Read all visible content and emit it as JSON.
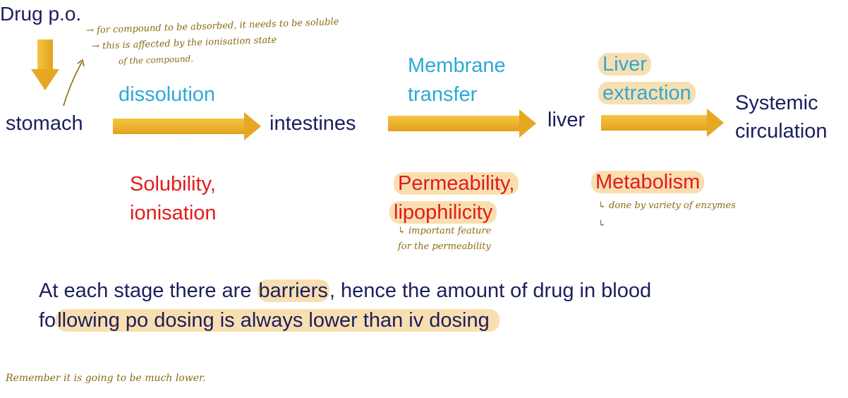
{
  "title": "Drug p.o.",
  "stages": {
    "stomach": "stomach",
    "intestines": "intestines",
    "liver": "liver",
    "systemic_line1": "Systemic",
    "systemic_line2": "circulation"
  },
  "processes": {
    "dissolution": "dissolution",
    "membrane_line1": "Membrane",
    "membrane_line2": "transfer",
    "liver_extraction_line1": "Liver",
    "liver_extraction_line2": "extraction"
  },
  "factors": {
    "solubility_line1": "Solubility,",
    "solubility_line2": "ionisation",
    "permeability_line1": "Permeability,",
    "permeability_line2": "lipophilicity",
    "metabolism": "Metabolism"
  },
  "notes": {
    "absorption_line1": "→ for compound to be absorbed, it needs to be soluble",
    "absorption_line2": "→ this is affected by the ionisation state",
    "absorption_line3": "of the compound.",
    "lipophilicity_line1": "↳ important feature",
    "lipophilicity_line2": "for the permeability",
    "metabolism_note": "↳ done by variety of enzymes",
    "metabolism_note2": "↳",
    "remember": "Remember it is going to be much lower."
  },
  "conclusion": {
    "line1_pre": "At each stage there are ",
    "line1_highlight": "barriers",
    "line1_post": ", hence the amount of drug in blood",
    "line2_pre": "fo",
    "line2_highlight": "llowing po dosing is always lower than iv dosing"
  },
  "colors": {
    "navy": "#1b1f5e",
    "cyan": "#2ea8d8",
    "red": "#e21b1b",
    "arrow": "#e6a722",
    "highlight": "#f4c470",
    "handwriting": "#8a6a10"
  }
}
